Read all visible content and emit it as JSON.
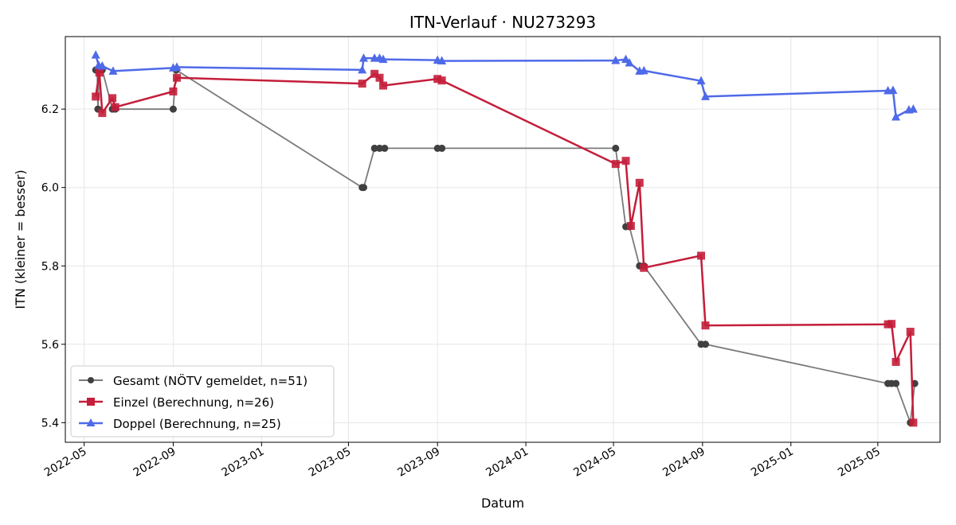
{
  "chart_data": {
    "type": "line",
    "title": "ITN-Verlauf · NU273293",
    "xlabel": "Datum",
    "ylabel": "ITN  (kleiner = besser)",
    "x_type": "date",
    "xlim": [
      "2022-04-05",
      "2025-07-26"
    ],
    "ylim": [
      5.35,
      6.385
    ],
    "x_ticks": [
      "2022-05",
      "2022-09",
      "2023-01",
      "2023-05",
      "2023-09",
      "2024-01",
      "2024-05",
      "2024-09",
      "2025-01",
      "2025-05"
    ],
    "y_ticks": [
      5.4,
      5.6,
      5.8,
      6.0,
      6.2
    ],
    "grid": true,
    "legend_position": "lower-left",
    "series": [
      {
        "name": "Gesamt (NÖTV gemeldet, n=51)",
        "color": "#404040",
        "line_color": "#7a7a7a",
        "marker": "circle",
        "points": [
          {
            "x": "2022-05-17",
            "y": 6.3
          },
          {
            "x": "2022-05-19",
            "y": 6.3
          },
          {
            "x": "2022-05-20",
            "y": 6.2
          },
          {
            "x": "2022-05-22",
            "y": 6.3
          },
          {
            "x": "2022-05-26",
            "y": 6.3
          },
          {
            "x": "2022-06-09",
            "y": 6.2
          },
          {
            "x": "2022-06-13",
            "y": 6.2
          },
          {
            "x": "2022-09-01",
            "y": 6.2
          },
          {
            "x": "2022-09-05",
            "y": 6.3
          },
          {
            "x": "2023-05-20",
            "y": 6.0
          },
          {
            "x": "2023-05-22",
            "y": 6.0
          },
          {
            "x": "2023-06-06",
            "y": 6.1
          },
          {
            "x": "2023-06-13",
            "y": 6.1
          },
          {
            "x": "2023-06-20",
            "y": 6.1
          },
          {
            "x": "2023-09-01",
            "y": 6.1
          },
          {
            "x": "2023-09-07",
            "y": 6.1
          },
          {
            "x": "2024-05-04",
            "y": 6.1
          },
          {
            "x": "2024-05-18",
            "y": 5.9
          },
          {
            "x": "2024-05-23",
            "y": 5.9
          },
          {
            "x": "2024-06-06",
            "y": 5.8
          },
          {
            "x": "2024-06-12",
            "y": 5.8
          },
          {
            "x": "2024-08-30",
            "y": 5.6
          },
          {
            "x": "2024-09-05",
            "y": 5.6
          },
          {
            "x": "2025-05-15",
            "y": 5.5
          },
          {
            "x": "2025-05-20",
            "y": 5.5
          },
          {
            "x": "2025-05-26",
            "y": 5.5
          },
          {
            "x": "2025-06-15",
            "y": 5.4
          },
          {
            "x": "2025-06-21",
            "y": 5.5
          }
        ]
      },
      {
        "name": "Einzel (Berechnung, n=26)",
        "color": "#c41e3a",
        "line_color": "#c41e3a",
        "marker": "square",
        "points": [
          {
            "x": "2022-05-17",
            "y": 6.232
          },
          {
            "x": "2022-05-22",
            "y": 6.293
          },
          {
            "x": "2022-05-26",
            "y": 6.19
          },
          {
            "x": "2022-06-09",
            "y": 6.228
          },
          {
            "x": "2022-06-13",
            "y": 6.205
          },
          {
            "x": "2022-09-01",
            "y": 6.245
          },
          {
            "x": "2022-09-06",
            "y": 6.28
          },
          {
            "x": "2023-05-20",
            "y": 6.265
          },
          {
            "x": "2023-06-06",
            "y": 6.29
          },
          {
            "x": "2023-06-13",
            "y": 6.28
          },
          {
            "x": "2023-06-18",
            "y": 6.26
          },
          {
            "x": "2023-09-01",
            "y": 6.277
          },
          {
            "x": "2023-09-07",
            "y": 6.273
          },
          {
            "x": "2024-05-04",
            "y": 6.06
          },
          {
            "x": "2024-05-18",
            "y": 6.068
          },
          {
            "x": "2024-05-25",
            "y": 5.902
          },
          {
            "x": "2024-06-06",
            "y": 6.012
          },
          {
            "x": "2024-06-12",
            "y": 5.795
          },
          {
            "x": "2024-08-30",
            "y": 5.826
          },
          {
            "x": "2024-09-05",
            "y": 5.648
          },
          {
            "x": "2025-05-15",
            "y": 5.651
          },
          {
            "x": "2025-05-20",
            "y": 5.652
          },
          {
            "x": "2025-05-26",
            "y": 5.555
          },
          {
            "x": "2025-06-15",
            "y": 5.632
          },
          {
            "x": "2025-06-19",
            "y": 5.4
          }
        ]
      },
      {
        "name": "Doppel (Berechnung, n=25)",
        "color": "#4f6ae8",
        "line_color": "#4f6ae8",
        "marker": "triangle",
        "points": [
          {
            "x": "2022-05-17",
            "y": 6.338
          },
          {
            "x": "2022-05-21",
            "y": 6.312
          },
          {
            "x": "2022-05-26",
            "y": 6.31
          },
          {
            "x": "2022-06-10",
            "y": 6.297
          },
          {
            "x": "2022-09-01",
            "y": 6.305
          },
          {
            "x": "2022-09-06",
            "y": 6.307
          },
          {
            "x": "2023-05-20",
            "y": 6.3
          },
          {
            "x": "2023-05-22",
            "y": 6.33
          },
          {
            "x": "2023-06-06",
            "y": 6.33
          },
          {
            "x": "2023-06-13",
            "y": 6.33
          },
          {
            "x": "2023-06-18",
            "y": 6.327
          },
          {
            "x": "2023-09-01",
            "y": 6.325
          },
          {
            "x": "2023-09-07",
            "y": 6.323
          },
          {
            "x": "2024-05-04",
            "y": 6.324
          },
          {
            "x": "2024-05-18",
            "y": 6.327
          },
          {
            "x": "2024-05-23",
            "y": 6.318
          },
          {
            "x": "2024-06-06",
            "y": 6.297
          },
          {
            "x": "2024-06-12",
            "y": 6.298
          },
          {
            "x": "2024-08-30",
            "y": 6.272
          },
          {
            "x": "2024-09-05",
            "y": 6.232
          },
          {
            "x": "2025-05-15",
            "y": 6.247
          },
          {
            "x": "2025-05-22",
            "y": 6.248
          },
          {
            "x": "2025-05-26",
            "y": 6.18
          },
          {
            "x": "2025-06-13",
            "y": 6.198
          },
          {
            "x": "2025-06-19",
            "y": 6.2
          }
        ]
      }
    ]
  }
}
